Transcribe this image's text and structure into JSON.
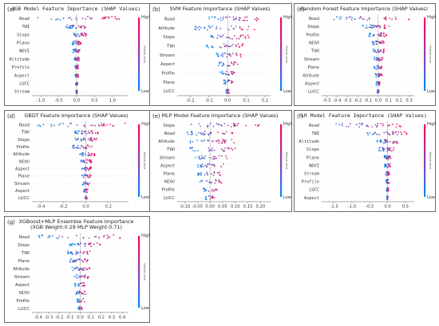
{
  "colorbar": {
    "high_label": "High",
    "low_label": "Low",
    "side_label": "Feature value",
    "high_color": "#ff0052",
    "low_color": "#008bfb"
  },
  "chart_data": [
    {
      "id": "a",
      "type": "scatter",
      "panel_label": "(a)",
      "mono": true,
      "title": "XGB Model Feature Importance (SHAP Values)",
      "subtitle": "",
      "features": [
        "Road",
        "TWI",
        "Slope",
        "Plane",
        "NDVI",
        "Altitude",
        "Profile",
        "Aspect",
        "LUCC",
        "Stream"
      ],
      "xlim": [
        -1.25,
        1.45
      ],
      "xticks": [
        "-1.0",
        "-0.5",
        "0.0",
        "0.5",
        "1.0"
      ],
      "xtick_values": [
        -1.0,
        -0.5,
        0.0,
        0.5,
        1.0
      ],
      "ranges": [
        [
          -1.1,
          1.2
        ],
        [
          -0.3,
          0.35
        ],
        [
          -0.15,
          0.28
        ],
        [
          -0.12,
          0.12
        ],
        [
          -0.1,
          0.1
        ],
        [
          -0.06,
          0.08
        ],
        [
          -0.05,
          0.05
        ],
        [
          -0.04,
          0.05
        ],
        [
          -0.03,
          0.03
        ],
        [
          -0.02,
          0.02
        ]
      ]
    },
    {
      "id": "b",
      "type": "scatter",
      "panel_label": "(b)",
      "mono": false,
      "title": "SVM Feature Importance (SHAP Values)",
      "subtitle": "",
      "features": [
        "Road",
        "Altitude",
        "Slope",
        "TWI",
        "Stream",
        "Aspect",
        "Profile",
        "Plane",
        "LUCC"
      ],
      "xlim": [
        -0.27,
        0.23
      ],
      "xticks": [
        "-0.2",
        "-0.1",
        "0.0",
        "0.1",
        "0.2"
      ],
      "xtick_values": [
        -0.2,
        -0.1,
        0.0,
        0.1,
        0.2
      ],
      "ranges": [
        [
          -0.1,
          0.18
        ],
        [
          -0.18,
          0.17
        ],
        [
          -0.1,
          0.12
        ],
        [
          -0.12,
          0.1
        ],
        [
          -0.06,
          0.08
        ],
        [
          -0.05,
          0.06
        ],
        [
          -0.04,
          0.04
        ],
        [
          -0.02,
          0.03
        ],
        [
          -0.01,
          0.01
        ]
      ]
    },
    {
      "id": "c",
      "type": "scatter",
      "panel_label": "(c)",
      "mono": false,
      "title": "Random Forest Feature Importance (SHAP Values)",
      "subtitle": "",
      "features": [
        "Road",
        "Slope",
        "Profile",
        "NDVI",
        "TWI",
        "Stream",
        "Plane",
        "Altitude",
        "Aspect",
        "LUCC"
      ],
      "xlim": [
        -0.55,
        0.35
      ],
      "xticks": [
        "-0.5",
        "-0.4",
        "-0.3",
        "-0.2",
        "-0.1",
        "0.0",
        "0.1",
        "0.2",
        "0.3"
      ],
      "xtick_values": [
        -0.5,
        -0.4,
        -0.3,
        -0.2,
        -0.1,
        0.0,
        0.1,
        0.2,
        0.3
      ],
      "ranges": [
        [
          -0.45,
          0.3
        ],
        [
          -0.15,
          0.12
        ],
        [
          -0.1,
          0.08
        ],
        [
          -0.06,
          0.06
        ],
        [
          -0.05,
          0.06
        ],
        [
          -0.04,
          0.05
        ],
        [
          -0.04,
          0.04
        ],
        [
          -0.03,
          0.04
        ],
        [
          -0.02,
          0.02
        ],
        [
          -0.01,
          0.01
        ]
      ]
    },
    {
      "id": "d",
      "type": "scatter",
      "panel_label": "(d)",
      "mono": false,
      "title": "GBDT Feature Importance (SHAP Values)",
      "subtitle": "",
      "features": [
        "Road",
        "TWI",
        "Slope",
        "Profile",
        "Altitude",
        "NDVI",
        "Aspect",
        "Plane",
        "Stream",
        "Aspect",
        "LUCC"
      ],
      "xlim": [
        -0.48,
        0.38
      ],
      "xticks": [
        "-0.4",
        "-0.2",
        "0.0",
        "0.2"
      ],
      "xtick_values": [
        -0.4,
        -0.2,
        0.0,
        0.2
      ],
      "ranges": [
        [
          -0.45,
          0.35
        ],
        [
          -0.1,
          0.12
        ],
        [
          -0.1,
          0.1
        ],
        [
          -0.12,
          0.06
        ],
        [
          -0.06,
          0.08
        ],
        [
          -0.05,
          0.06
        ],
        [
          -0.04,
          0.05
        ],
        [
          -0.04,
          0.05
        ],
        [
          -0.03,
          0.04
        ],
        [
          -0.02,
          0.02
        ],
        [
          -0.01,
          0.01
        ]
      ]
    },
    {
      "id": "e",
      "type": "scatter",
      "panel_label": "(e)",
      "mono": false,
      "title": "MLP Model Feature Importance (SHAP Values)",
      "subtitle": "",
      "features": [
        "Slope",
        "Road",
        "Altitude",
        "TWI",
        "Stream",
        "Aspect",
        "Plane",
        "NDVI",
        "Profile",
        "LUCC"
      ],
      "xlim": [
        -0.13,
        0.24
      ],
      "xticks": [
        "-0.10",
        "-0.05",
        "0.00",
        "0.05",
        "0.10",
        "0.15",
        "0.20"
      ],
      "xtick_values": [
        -0.1,
        -0.05,
        0.0,
        0.05,
        0.1,
        0.15,
        0.2
      ],
      "ranges": [
        [
          -0.08,
          0.2
        ],
        [
          -0.1,
          0.12
        ],
        [
          -0.08,
          0.1
        ],
        [
          -0.08,
          0.1
        ],
        [
          -0.06,
          0.08
        ],
        [
          -0.05,
          0.06
        ],
        [
          -0.05,
          0.05
        ],
        [
          -0.04,
          0.05
        ],
        [
          -0.03,
          0.03
        ],
        [
          -0.02,
          0.02
        ]
      ]
    },
    {
      "id": "f",
      "type": "scatter",
      "panel_label": "(f)",
      "mono": true,
      "title": "LR Model Feature Importance (SHAP Values)",
      "subtitle": "",
      "features": [
        "Road",
        "TWI",
        "Altitude",
        "Slope",
        "Plane",
        "NDVI",
        "Stream",
        "Profile",
        "LUCC",
        "Aspect"
      ],
      "xlim": [
        -1.85,
        0.75
      ],
      "xticks": [
        "-1.5",
        "-1.0",
        "-0.5",
        "0.0",
        "0.5"
      ],
      "xtick_values": [
        -1.5,
        -1.0,
        -0.5,
        0.0,
        0.5
      ],
      "ranges": [
        [
          -1.6,
          0.4
        ],
        [
          -0.6,
          0.55
        ],
        [
          -0.3,
          0.3
        ],
        [
          -0.25,
          0.2
        ],
        [
          -0.1,
          0.1
        ],
        [
          -0.08,
          0.08
        ],
        [
          -0.06,
          0.06
        ],
        [
          -0.05,
          0.05
        ],
        [
          -0.03,
          0.03
        ],
        [
          -0.02,
          0.02
        ]
      ]
    },
    {
      "id": "g",
      "type": "scatter",
      "panel_label": "(g)",
      "mono": false,
      "title": "XGBoost+MLP Ensemble Feature Importance",
      "subtitle": "(XGB Weight:0.29 MLP Weight:0.71)",
      "features": [
        "Road",
        "Slope",
        "TWI",
        "Plane",
        "Altitude",
        "Stream",
        "Aspect",
        "NDVI",
        "Profile",
        "LUCC"
      ],
      "xlim": [
        -0.46,
        0.46
      ],
      "xticks": [
        "-0.4",
        "-0.3",
        "-0.2",
        "-0.1",
        "0.0",
        "0.1",
        "0.2",
        "0.3",
        "0.4"
      ],
      "xtick_values": [
        -0.4,
        -0.3,
        -0.2,
        -0.1,
        0.0,
        0.1,
        0.2,
        0.3,
        0.4
      ],
      "ranges": [
        [
          -0.4,
          0.38
        ],
        [
          -0.1,
          0.2
        ],
        [
          -0.12,
          0.1
        ],
        [
          -0.1,
          0.08
        ],
        [
          -0.08,
          0.1
        ],
        [
          -0.06,
          0.08
        ],
        [
          -0.05,
          0.05
        ],
        [
          -0.04,
          0.05
        ],
        [
          -0.03,
          0.04
        ],
        [
          -0.02,
          0.02
        ]
      ]
    }
  ]
}
